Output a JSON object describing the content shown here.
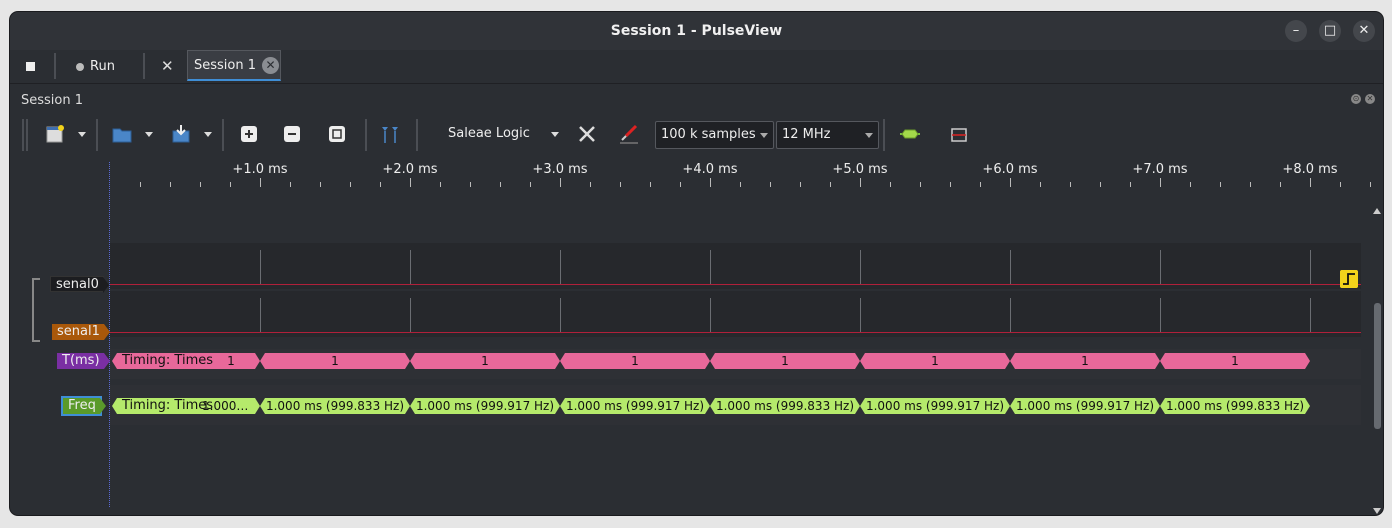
{
  "window": {
    "title": "Session 1 - PulseView"
  },
  "tabbar": {
    "run_label": "Run",
    "tab_label": "Session 1"
  },
  "session": {
    "header": "Session 1"
  },
  "toolbar": {
    "device": "Saleae Logic",
    "samples": "100 k samples",
    "rate": "12 MHz"
  },
  "ruler": {
    "labels": [
      "+1.0 ms",
      "+2.0 ms",
      "+3.0 ms",
      "+4.0 ms",
      "+5.0 ms",
      "+6.0 ms",
      "+7.0 ms",
      "+8.0 ms"
    ]
  },
  "signals": {
    "senal0": "senal0",
    "senal1": "senal1",
    "tms": "T(ms)",
    "freq": "Freq"
  },
  "decoders": {
    "times_title": "Timing: Times",
    "times_values": [
      "1",
      "1",
      "1",
      "1",
      "1",
      "1",
      "1",
      "1"
    ],
    "freq_values": [
      "1.000…",
      "1.000 ms (999.833 Hz)",
      "1.000 ms (999.917 Hz)",
      "1.000 ms (999.917 Hz)",
      "1.000 ms (999.833 Hz)",
      "1.000 ms (999.917 Hz)",
      "1.000 ms (999.917 Hz)",
      "1.000 ms (999.833 Hz)"
    ]
  },
  "colors": {
    "accent": "#3f8ed6",
    "times_ann": "#e8689a",
    "freq_ann": "#b5ea6b",
    "trace_red": "#b0203a",
    "trigger": "#f2d21b"
  }
}
